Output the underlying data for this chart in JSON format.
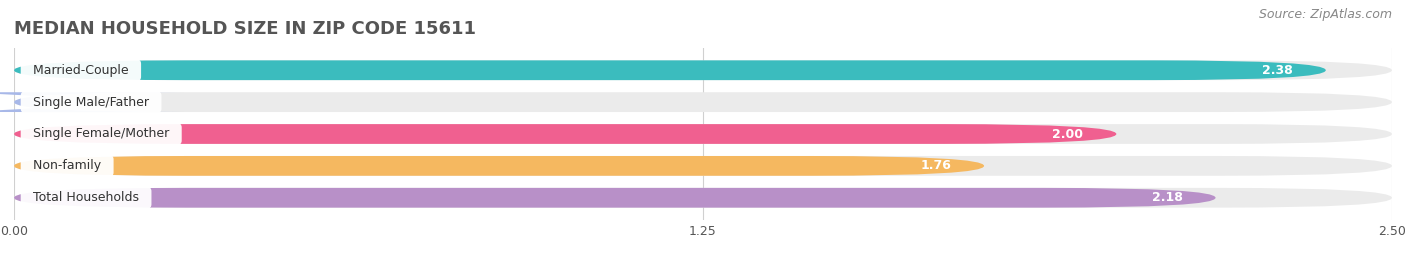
{
  "title": "MEDIAN HOUSEHOLD SIZE IN ZIP CODE 15611",
  "source": "Source: ZipAtlas.com",
  "categories": [
    "Married-Couple",
    "Single Male/Father",
    "Single Female/Mother",
    "Non-family",
    "Total Households"
  ],
  "values": [
    2.38,
    0.0,
    2.0,
    1.76,
    2.18
  ],
  "bar_colors": [
    "#3bbcbe",
    "#a8b8e8",
    "#f06090",
    "#f5b860",
    "#b890c8"
  ],
  "background_color": "#ffffff",
  "bar_bg_color": "#eeeeee",
  "xlim": [
    0,
    2.5
  ],
  "xticks": [
    0.0,
    1.25,
    2.5
  ],
  "xtick_labels": [
    "0.00",
    "1.25",
    "2.50"
  ],
  "title_fontsize": 13,
  "source_fontsize": 9,
  "label_fontsize": 9,
  "value_fontsize": 9,
  "bar_height": 0.62,
  "figsize": [
    14.06,
    2.68
  ],
  "dpi": 100
}
